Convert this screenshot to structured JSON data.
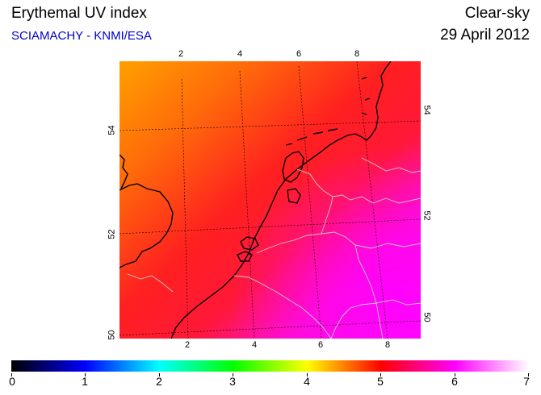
{
  "header": {
    "title": "Erythemal UV index",
    "subtitle": "SCIAMACHY - KNMI/ESA",
    "condition": "Clear-sky",
    "date": "29 April 2012"
  },
  "map": {
    "region": "Netherlands / Benelux",
    "longitude_ticks_top": [
      "2",
      "4",
      "6",
      "8"
    ],
    "longitude_ticks_bottom": [
      "2",
      "4",
      "6",
      "8"
    ],
    "latitude_ticks_left": [
      "54",
      "52",
      "50"
    ],
    "latitude_ticks_right": [
      "54",
      "52",
      "50"
    ],
    "lon_range": [
      0.0,
      9.0
    ],
    "lat_range": [
      50.0,
      55.5
    ],
    "field_colors": {
      "northwest": "#ffa000",
      "center": "#ff1e1e",
      "southeast": "#ff10ff"
    },
    "coast_color": "#000000",
    "border_color": "#c8c8c8",
    "grid_style": "dashed"
  },
  "colorbar": {
    "labels": [
      "0",
      "1",
      "2",
      "3",
      "4",
      "5",
      "6",
      "7"
    ],
    "range": [
      0,
      7
    ],
    "stops": [
      "#000000",
      "#0000ff",
      "#00ffff",
      "#00ff00",
      "#ffff00",
      "#ff0000",
      "#ff00ff",
      "#ffffff"
    ]
  }
}
